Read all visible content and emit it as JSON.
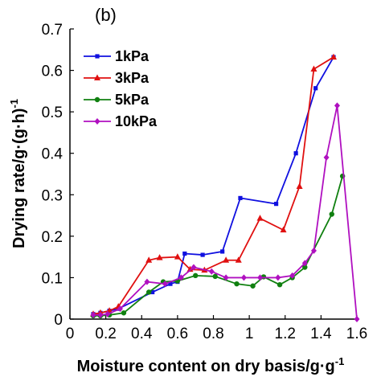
{
  "panel_label": "(b)",
  "chart_data": {
    "type": "line",
    "title": "",
    "xlabel": "Moisture content on dry basis/g·g",
    "xlabel_sup": "-1",
    "ylabel": "Drying rate/g·(g·h)",
    "ylabel_sup": "-1",
    "xlim": [
      0,
      1.6
    ],
    "ylim": [
      0,
      0.7
    ],
    "xticks": [
      "0",
      "0.2",
      "0.4",
      "0.6",
      "0.8",
      "1",
      "1.2",
      "1.4",
      "1.6"
    ],
    "xtick_values": [
      0,
      0.2,
      0.4,
      0.6,
      0.8,
      1.0,
      1.2,
      1.4,
      1.6
    ],
    "yticks": [
      "0",
      "0.1",
      "0.2",
      "0.3",
      "0.4",
      "0.5",
      "0.6",
      "0.7"
    ],
    "ytick_values": [
      0,
      0.1,
      0.2,
      0.3,
      0.4,
      0.5,
      0.6,
      0.7
    ],
    "grid": false,
    "legend_position": "top-left",
    "series": [
      {
        "name": "1kPa",
        "color": "#1010e0",
        "marker": "square",
        "x": [
          0.13,
          0.17,
          0.22,
          0.27,
          0.46,
          0.56,
          0.6,
          0.64,
          0.74,
          0.85,
          0.95,
          1.15,
          1.26,
          1.37,
          1.47
        ],
        "y": [
          0.012,
          0.015,
          0.02,
          0.025,
          0.065,
          0.085,
          0.09,
          0.158,
          0.155,
          0.163,
          0.292,
          0.278,
          0.4,
          0.557,
          0.632
        ]
      },
      {
        "name": "3kPa",
        "color": "#e01010",
        "marker": "triangle",
        "x": [
          0.13,
          0.17,
          0.22,
          0.27,
          0.44,
          0.5,
          0.6,
          0.67,
          0.75,
          0.87,
          0.94,
          1.06,
          1.19,
          1.28,
          1.36,
          1.47
        ],
        "y": [
          0.012,
          0.015,
          0.02,
          0.03,
          0.142,
          0.148,
          0.15,
          0.12,
          0.118,
          0.142,
          0.142,
          0.243,
          0.215,
          0.32,
          0.603,
          0.632
        ]
      },
      {
        "name": "5kPa",
        "color": "#108010",
        "marker": "circle",
        "x": [
          0.13,
          0.17,
          0.22,
          0.3,
          0.44,
          0.52,
          0.6,
          0.7,
          0.81,
          0.93,
          1.02,
          1.08,
          1.17,
          1.24,
          1.31,
          1.46,
          1.52
        ],
        "y": [
          0.008,
          0.008,
          0.01,
          0.015,
          0.065,
          0.09,
          0.092,
          0.105,
          0.103,
          0.085,
          0.08,
          0.102,
          0.083,
          0.1,
          0.125,
          0.253,
          0.345
        ]
      },
      {
        "name": "10kPa",
        "color": "#b010c0",
        "marker": "diamond",
        "x": [
          0.13,
          0.17,
          0.21,
          0.28,
          0.43,
          0.53,
          0.62,
          0.69,
          0.79,
          0.87,
          0.97,
          1.06,
          1.16,
          1.24,
          1.31,
          1.36,
          1.43,
          1.49,
          1.6
        ],
        "y": [
          0.01,
          0.01,
          0.012,
          0.025,
          0.09,
          0.085,
          0.1,
          0.125,
          0.115,
          0.1,
          0.1,
          0.1,
          0.1,
          0.105,
          0.135,
          0.165,
          0.39,
          0.515,
          0.0
        ]
      }
    ]
  }
}
